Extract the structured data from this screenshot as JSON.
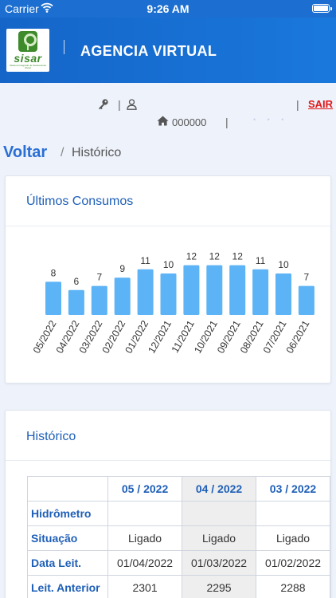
{
  "status_bar": {
    "carrier": "Carrier",
    "time": "9:26 AM"
  },
  "header": {
    "logo_text": "sisar",
    "logo_subtext": "Sistema Integrado de Saneamento Rural",
    "title": "AGENCIA VIRTUAL"
  },
  "toolbar": {
    "separator": "|",
    "logout_label": "SAIR",
    "account_number": "000000"
  },
  "breadcrumb": {
    "back_label": "Voltar",
    "separator": "/",
    "current": "Histórico"
  },
  "consumption_card": {
    "title": "Últimos Consumos"
  },
  "chart_data": {
    "type": "bar",
    "title": "",
    "categories": [
      "05/2022",
      "04/2022",
      "03/2022",
      "02/2022",
      "01/2022",
      "12/2021",
      "11/2021",
      "10/2021",
      "09/2021",
      "08/2021",
      "07/2021",
      "06/2021"
    ],
    "values": [
      8,
      6,
      7,
      9,
      11,
      10,
      12,
      12,
      12,
      11,
      10,
      7
    ],
    "bar_color": "#5cb3f5",
    "data_labels": true,
    "grid": false
  },
  "history_card": {
    "title": "Histórico",
    "columns": [
      "05 / 2022",
      "04 / 2022",
      "03 / 2022"
    ],
    "rows": [
      {
        "label": "Hidrômetro",
        "values": [
          "",
          "",
          ""
        ]
      },
      {
        "label": "Situação",
        "values": [
          "Ligado",
          "Ligado",
          "Ligado"
        ]
      },
      {
        "label": "Data Leit.",
        "values": [
          "01/04/2022",
          "01/03/2022",
          "01/02/2022"
        ]
      },
      {
        "label": "Leit. Anterior",
        "values": [
          "2301",
          "2295",
          "2288"
        ]
      }
    ]
  },
  "colors": {
    "header_blue": "#1a6fd4",
    "accent_blue": "#1e5fb7",
    "logout_red": "#e01818",
    "bar_blue": "#5cb3f5"
  }
}
